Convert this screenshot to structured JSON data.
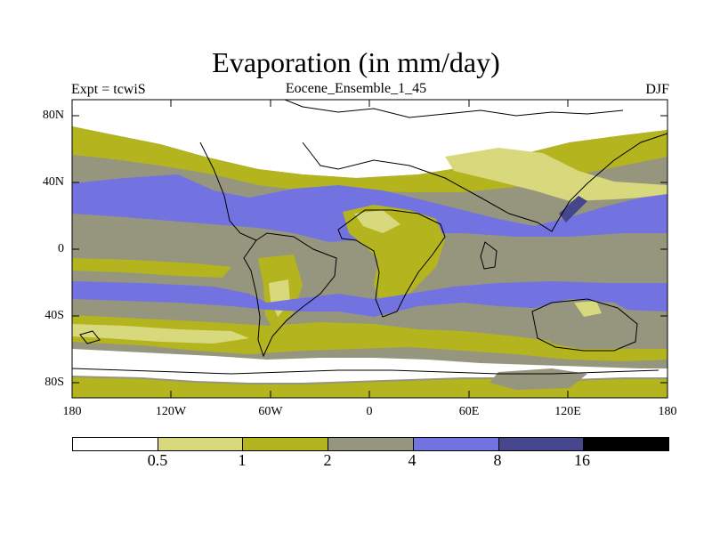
{
  "title": "Evaporation (in mm/day)",
  "subtitle_left": "Expt = tcwiS",
  "subtitle_center": "Eocene_Ensemble_1_45",
  "subtitle_right": "DJF",
  "lat_labels": [
    "80N",
    "40N",
    "0",
    "40S",
    "80S"
  ],
  "lon_labels": [
    "180",
    "120W",
    "60W",
    "0",
    "60E",
    "120E",
    "180"
  ],
  "legend": {
    "labels": [
      "0.5",
      "1",
      "2",
      "4",
      "8",
      "16"
    ],
    "colors": [
      "#ffffff",
      "#d8d87c",
      "#b4b41e",
      "#96967f",
      "#7272e0",
      "#46468c",
      "#000000"
    ]
  },
  "colors": {
    "ocean_high": "#7272e0",
    "max_cell": "#46468c",
    "mid": "#96967f",
    "low": "#b4b41e",
    "very_low": "#d8d87c",
    "lowest": "#ffffff"
  }
}
